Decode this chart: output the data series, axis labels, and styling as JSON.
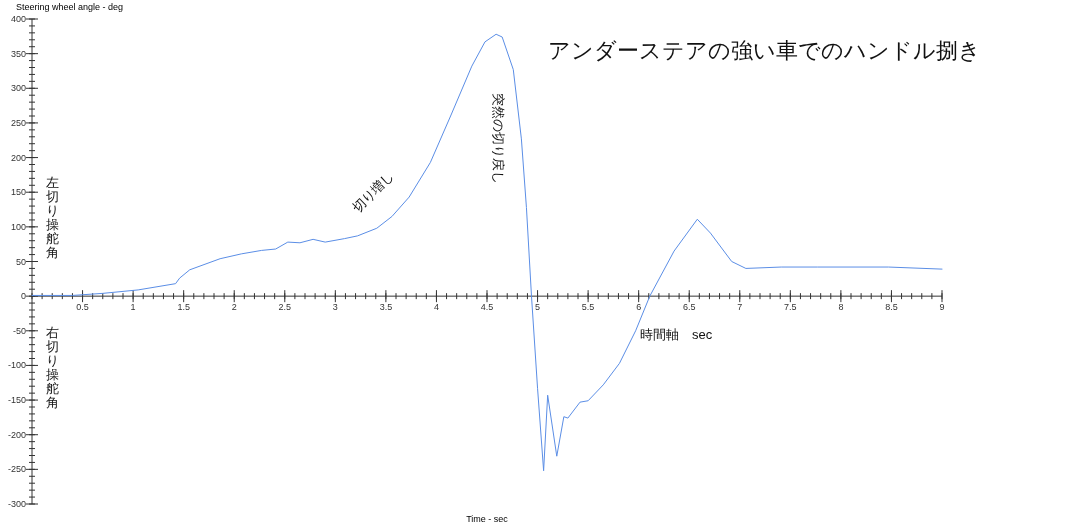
{
  "chart_data": {
    "type": "line",
    "title": "アンダーステアの強い車でのハンドル捌き",
    "xlabel": "Time - sec",
    "ylabel": "Steering wheel angle - deg",
    "x": [
      0,
      0.4,
      0.7,
      1.05,
      1.42,
      1.46,
      1.56,
      1.86,
      2.07,
      2.27,
      2.41,
      2.53,
      2.65,
      2.78,
      2.9,
      3.09,
      3.22,
      3.41,
      3.56,
      3.73,
      3.94,
      4.14,
      4.35,
      4.48,
      4.59,
      4.65,
      4.76,
      4.84,
      4.89,
      4.94,
      5.0,
      5.06,
      5.1,
      5.19,
      5.26,
      5.3,
      5.42,
      5.5,
      5.65,
      5.81,
      5.97,
      6.11,
      6.35,
      6.58,
      6.71,
      6.92,
      7.06,
      7.41,
      7.77,
      8.47,
      9.0
    ],
    "series": [
      {
        "color": "#5b8ee6",
        "values": [
          1,
          1,
          4,
          9,
          18,
          26,
          38,
          54,
          61,
          66,
          68,
          78,
          77,
          82,
          78,
          83,
          87,
          98,
          115,
          143,
          193,
          260,
          332,
          367,
          378,
          374,
          327,
          227,
          128,
          0,
          -133,
          -252,
          -143,
          -231,
          -174,
          -176,
          -153,
          -151,
          -128,
          -97,
          -50,
          0,
          65,
          111,
          91,
          50,
          40,
          42,
          42,
          42,
          39
        ]
      }
    ],
    "xlim": [
      0,
      9
    ],
    "xticks": [
      0.5,
      1,
      1.5,
      2,
      2.5,
      3,
      3.5,
      4,
      4.5,
      5,
      5.5,
      6,
      6.5,
      7,
      7.5,
      8,
      8.5,
      9
    ],
    "ylim": [
      -300,
      400
    ],
    "yticks": [
      -300,
      -250,
      -200,
      -150,
      -100,
      -50,
      0,
      50,
      100,
      150,
      200,
      250,
      300,
      350,
      400
    ],
    "grid": false,
    "annotations": [
      "左切り操舵角",
      "右切り操舵角",
      "切り増し",
      "突然の切り戻し",
      "時間軸　sec"
    ]
  }
}
